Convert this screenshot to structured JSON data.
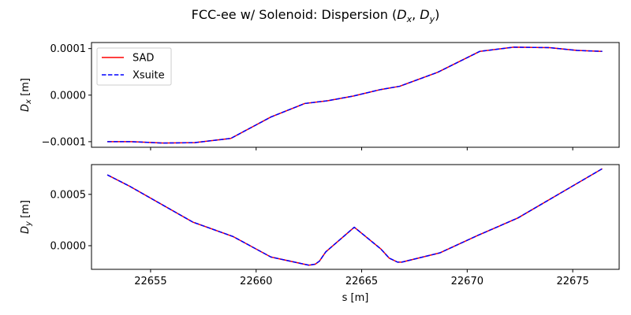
{
  "title": "FCC-ee w/ Solenoid: Dispersion (",
  "title_dx_base": "D",
  "title_dx_sub": "x",
  "title_sep": ", ",
  "title_dy_base": "D",
  "title_dy_sub": "y",
  "title_close": ")",
  "colors": {
    "sad": "#ff0000",
    "xsuite": "#0000ff"
  },
  "chart_data": [
    {
      "type": "line",
      "ylabel_base": "D",
      "ylabel_sub": "x",
      "ylabel_unit": " [m]",
      "xlabel": "",
      "xlim": [
        22652.2,
        22677.2
      ],
      "ylim": [
        -0.000112,
        0.000113
      ],
      "yticks": [
        -0.0001,
        0.0,
        0.0001
      ],
      "ytick_labels": [
        "−0.0001",
        "0.0000",
        "0.0001"
      ],
      "xticks": [
        22655,
        22660,
        22665,
        22670,
        22675
      ],
      "xtick_labels_shown": false,
      "legend": {
        "position": "upper-left",
        "entries": [
          "SAD",
          "Xsuite"
        ]
      },
      "series": [
        {
          "name": "SAD",
          "style": "solid",
          "x": [
            22652.95,
            22654.1,
            22655.6,
            22657.1,
            22658.8,
            22660.7,
            22662.3,
            22663.4,
            22664.6,
            22665.9,
            22666.8,
            22668.6,
            22670.6,
            22672.2,
            22673.9,
            22675.2,
            22676.4
          ],
          "y": [
            -0.0001,
            -0.0001,
            -0.000103,
            -0.000102,
            -9.3e-05,
            -4.7e-05,
            -1.8e-05,
            -1.2e-05,
            -2e-06,
            1.2e-05,
            1.9e-05,
            4.9e-05,
            9.4e-05,
            0.000103,
            0.000102,
            9.6e-05,
            9.4e-05
          ]
        },
        {
          "name": "Xsuite",
          "style": "dashed",
          "x": [
            22652.95,
            22654.1,
            22655.6,
            22657.1,
            22658.8,
            22660.7,
            22662.3,
            22663.4,
            22664.6,
            22665.9,
            22666.8,
            22668.6,
            22670.6,
            22672.2,
            22673.9,
            22675.2,
            22676.4
          ],
          "y": [
            -0.0001,
            -0.0001,
            -0.000103,
            -0.000102,
            -9.3e-05,
            -4.7e-05,
            -1.8e-05,
            -1.2e-05,
            -2e-06,
            1.2e-05,
            1.9e-05,
            4.9e-05,
            9.4e-05,
            0.000103,
            0.000102,
            9.6e-05,
            9.4e-05
          ]
        }
      ]
    },
    {
      "type": "line",
      "ylabel_base": "D",
      "ylabel_sub": "y",
      "ylabel_unit": " [m]",
      "xlabel": "s [m]",
      "xlim": [
        22652.2,
        22677.2
      ],
      "ylim": [
        -0.00023,
        0.00079
      ],
      "yticks": [
        0.0,
        0.0005
      ],
      "ytick_labels": [
        "0.0000",
        "0.0005"
      ],
      "xticks": [
        22655,
        22660,
        22665,
        22670,
        22675
      ],
      "xtick_labels": [
        "22655",
        "22660",
        "22665",
        "22670",
        "22675"
      ],
      "series": [
        {
          "name": "SAD",
          "style": "solid",
          "x": [
            22652.95,
            22654.0,
            22657.0,
            22658.9,
            22660.7,
            22662.5,
            22662.8,
            22663.0,
            22663.3,
            22664.65,
            22665.9,
            22666.3,
            22666.7,
            22666.9,
            22668.7,
            22670.5,
            22672.4,
            22674.4,
            22676.4
          ],
          "y": [
            0.00069,
            0.00058,
            0.00023,
            9e-05,
            -0.00011,
            -0.00019,
            -0.00018,
            -0.00015,
            -6e-05,
            0.00018,
            -3e-05,
            -0.00012,
            -0.00016,
            -0.00016,
            -7e-05,
            0.0001,
            0.00027,
            0.00051,
            0.00075
          ]
        },
        {
          "name": "Xsuite",
          "style": "dashed",
          "x": [
            22652.95,
            22654.0,
            22657.0,
            22658.9,
            22660.7,
            22662.5,
            22662.8,
            22663.0,
            22663.3,
            22664.65,
            22665.9,
            22666.3,
            22666.7,
            22666.9,
            22668.7,
            22670.5,
            22672.4,
            22674.4,
            22676.4
          ],
          "y": [
            0.00069,
            0.00058,
            0.00023,
            9e-05,
            -0.00011,
            -0.00019,
            -0.00018,
            -0.00015,
            -6e-05,
            0.00018,
            -3e-05,
            -0.00012,
            -0.00016,
            -0.00016,
            -7e-05,
            0.0001,
            0.00027,
            0.00051,
            0.00075
          ]
        }
      ]
    }
  ]
}
